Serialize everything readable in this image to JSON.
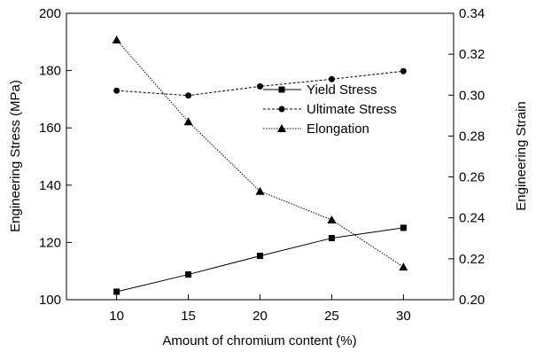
{
  "chart_data": {
    "type": "line",
    "xlabel": "Amount of chromium content (%)",
    "ylabel": "Engineering Stress (MPa)",
    "y2label": "Engineering Strain",
    "x": [
      10,
      15,
      20,
      25,
      30
    ],
    "xlim": [
      6.5,
      33.5
    ],
    "xticks": [
      10,
      15,
      20,
      25,
      30
    ],
    "ylim": [
      100,
      200
    ],
    "yticks": [
      100,
      120,
      140,
      160,
      180,
      200
    ],
    "y2lim": [
      0.2,
      0.34
    ],
    "y2ticks": [
      {
        "value": 0.2,
        "label": "0.20"
      },
      {
        "value": 0.22,
        "label": "0.22"
      },
      {
        "value": 0.24,
        "label": "0.24"
      },
      {
        "value": 0.26,
        "label": "0.26"
      },
      {
        "value": 0.28,
        "label": "0.28"
      },
      {
        "value": 0.3,
        "label": "0.30"
      },
      {
        "value": 0.32,
        "label": "0.32"
      },
      {
        "value": 0.34,
        "label": "0.34"
      }
    ],
    "series": [
      {
        "name": "Yield Stress",
        "color": "#000000",
        "marker": "square",
        "dash": "solid",
        "values": [
          102.8,
          108.8,
          115.3,
          121.5,
          125.1
        ]
      },
      {
        "name": "Ultimate Stress",
        "color": "#000000",
        "marker": "circle",
        "dash": "dashed",
        "values": [
          173,
          171.3,
          174.5,
          177,
          179.8
        ]
      },
      {
        "name": "Elongation",
        "color": "#000000",
        "marker": "triangle",
        "dash": "dotted",
        "axis": "y2",
        "values": [
          0.327,
          0.287,
          0.253,
          0.239,
          0.216
        ]
      }
    ]
  }
}
